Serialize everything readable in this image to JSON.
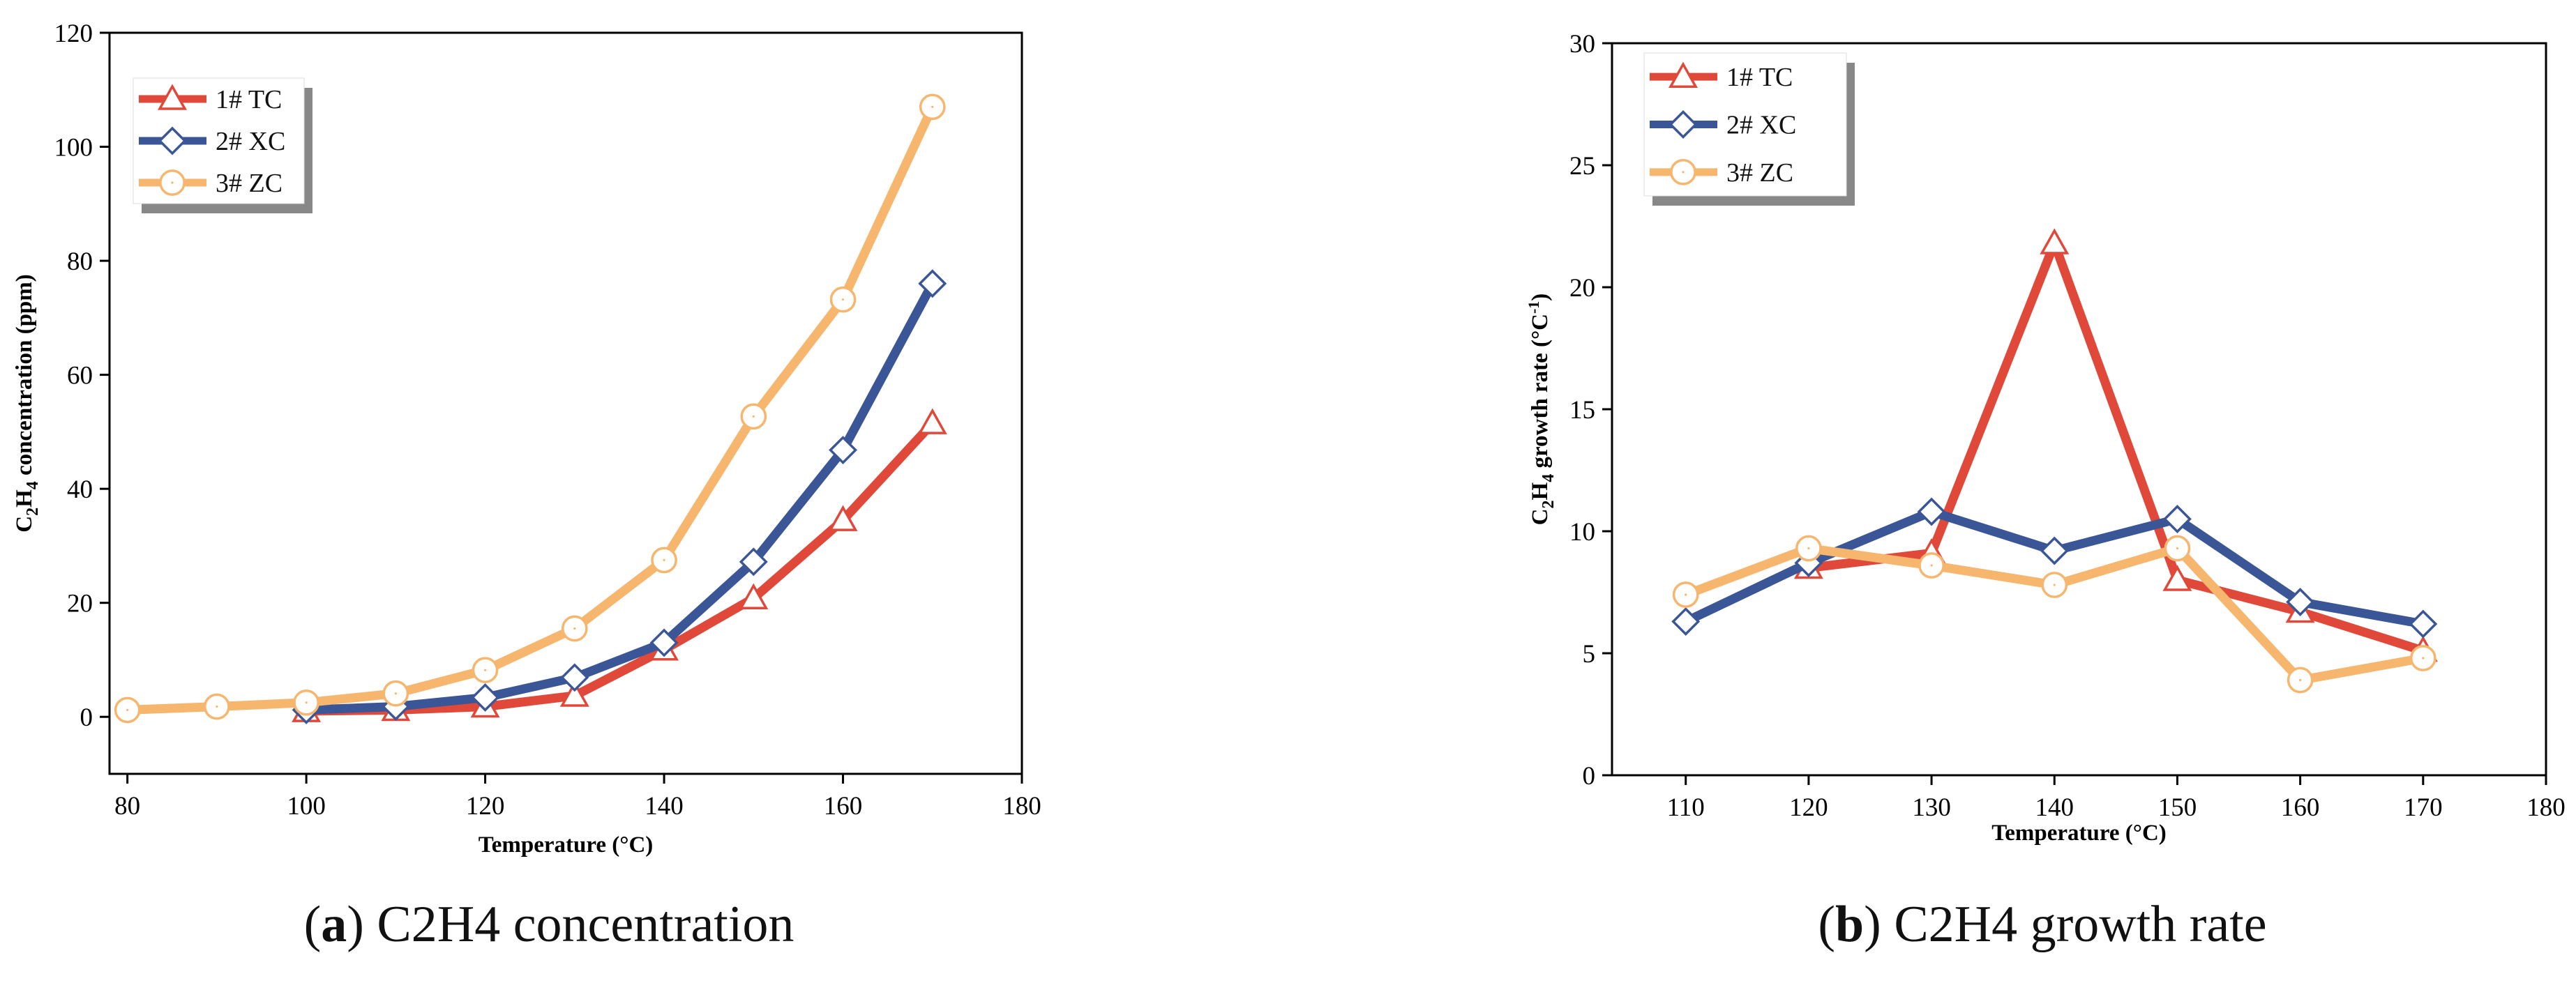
{
  "figure": {
    "panels": [
      {
        "id": "a",
        "caption_label": "a",
        "caption_text": "C2H4 concentration"
      },
      {
        "id": "b",
        "caption_label": "b",
        "caption_text": "C2H4 growth rate"
      }
    ]
  },
  "chart_data": [
    {
      "type": "line",
      "panel": "a",
      "title": "",
      "xlabel": "Temperature (°C)",
      "ylabel": "C2H4 concentration (ppm)",
      "ylabel_parts": {
        "pre": "C",
        "sub1": "2",
        "mid": "H",
        "sub2": "4",
        "post": " concentration (ppm)"
      },
      "xlim": [
        78,
        180
      ],
      "ylim": [
        -10,
        120
      ],
      "xticks": [
        80,
        100,
        120,
        140,
        160,
        180
      ],
      "yticks": [
        0,
        20,
        40,
        60,
        80,
        100,
        120
      ],
      "legend_position": "top-left",
      "series": [
        {
          "name": "1# TC",
          "marker": "triangle",
          "color": "#E0493A",
          "x": [
            100,
            110,
            120,
            130,
            140,
            150,
            160,
            170
          ],
          "y": [
            1.0,
            1.2,
            1.8,
            3.7,
            11.8,
            20.8,
            34.5,
            51.5
          ]
        },
        {
          "name": "2# XC",
          "marker": "diamond",
          "color": "#3B5696",
          "x": [
            100,
            110,
            120,
            130,
            140,
            150,
            160,
            170
          ],
          "y": [
            1.2,
            1.8,
            3.4,
            6.9,
            13.0,
            27.2,
            46.8,
            76.0
          ]
        },
        {
          "name": "3# ZC",
          "marker": "circle",
          "color": "#F6B66E",
          "x": [
            80,
            90,
            100,
            110,
            120,
            130,
            140,
            150,
            160,
            170
          ],
          "y": [
            1.2,
            1.8,
            2.5,
            4.1,
            8.2,
            15.5,
            27.5,
            52.7,
            73.2,
            107.0
          ]
        }
      ]
    },
    {
      "type": "line",
      "panel": "b",
      "title": "",
      "xlabel": "Temperature (°C)",
      "ylabel": "C2H4 growth rate (°C-1)",
      "ylabel_parts": {
        "pre": "C",
        "sub1": "2",
        "mid": "H",
        "sub2": "4",
        "post": " growth rate (°C",
        "sup": "-1",
        "close": ")"
      },
      "xlim": [
        104,
        180
      ],
      "ylim": [
        0,
        30
      ],
      "xticks": [
        110,
        120,
        130,
        140,
        150,
        160,
        170,
        180
      ],
      "yticks": [
        0,
        5,
        10,
        15,
        20,
        25,
        30
      ],
      "legend_position": "top-left",
      "series": [
        {
          "name": "1# TC",
          "marker": "triangle",
          "color": "#E0493A",
          "x": [
            120,
            130,
            140,
            150,
            160,
            170
          ],
          "y": [
            8.5,
            9.1,
            21.8,
            8.0,
            6.7,
            5.1
          ]
        },
        {
          "name": "2# XC",
          "marker": "diamond",
          "color": "#3B5696",
          "x": [
            110,
            120,
            130,
            140,
            150,
            160,
            170
          ],
          "y": [
            6.3,
            8.7,
            10.8,
            9.2,
            10.5,
            7.1,
            6.2
          ]
        },
        {
          "name": "3# ZC",
          "marker": "circle",
          "color": "#F6B66E",
          "x": [
            110,
            120,
            130,
            140,
            150,
            160,
            170
          ],
          "y": [
            7.4,
            9.3,
            8.6,
            7.8,
            9.3,
            3.9,
            4.8
          ]
        }
      ]
    }
  ]
}
